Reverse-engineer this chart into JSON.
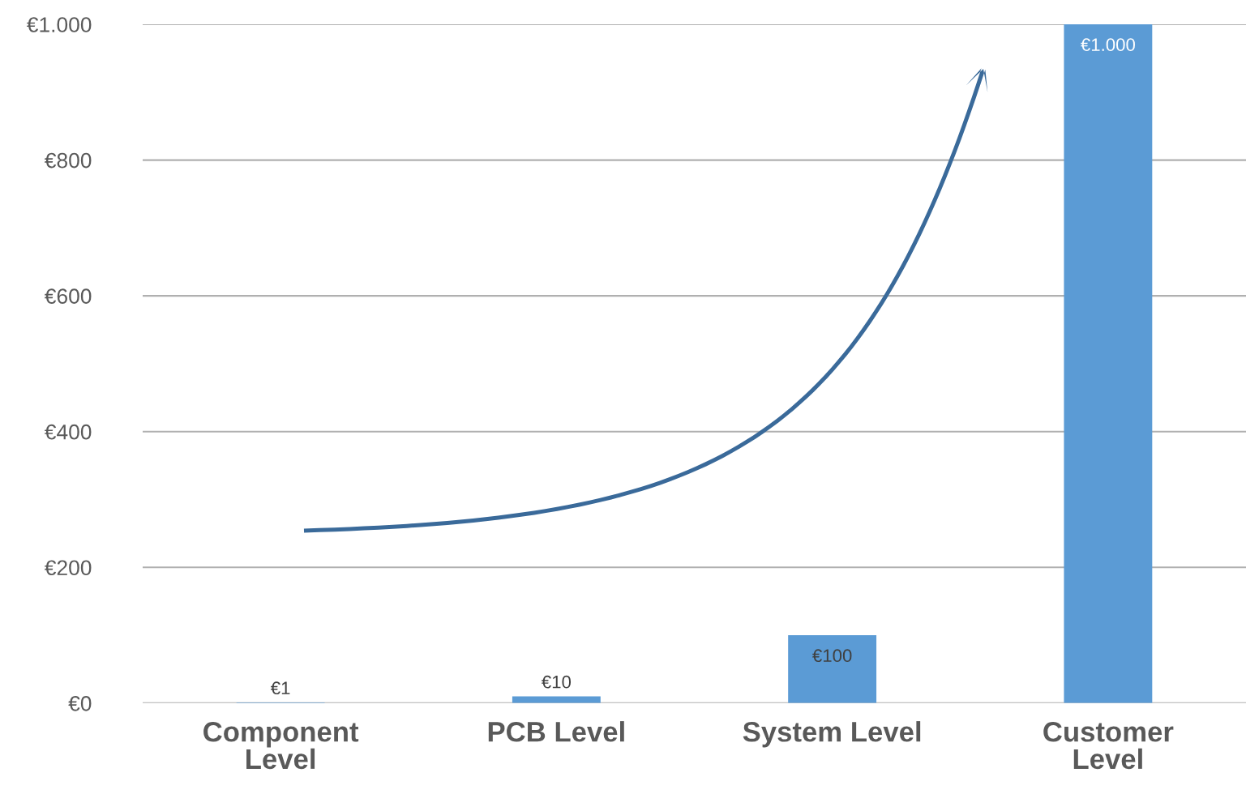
{
  "chart_data": {
    "type": "bar",
    "categories": [
      "Component\nLevel",
      "PCB Level",
      "System Level",
      "Customer\nLevel"
    ],
    "values": [
      1,
      10,
      100,
      1000
    ],
    "value_labels": [
      "€1",
      "€10",
      "€100",
      "€1.000"
    ],
    "color": "#5b9bd5",
    "ylim": [
      0,
      1000
    ],
    "yticks": [
      {
        "value": 0,
        "label": "€0"
      },
      {
        "value": 200,
        "label": "€200"
      },
      {
        "value": 400,
        "label": "€400"
      },
      {
        "value": 600,
        "label": "€600"
      },
      {
        "value": 800,
        "label": "€800"
      },
      {
        "value": 1000,
        "label": "€1.000"
      }
    ],
    "grid": "y"
  }
}
